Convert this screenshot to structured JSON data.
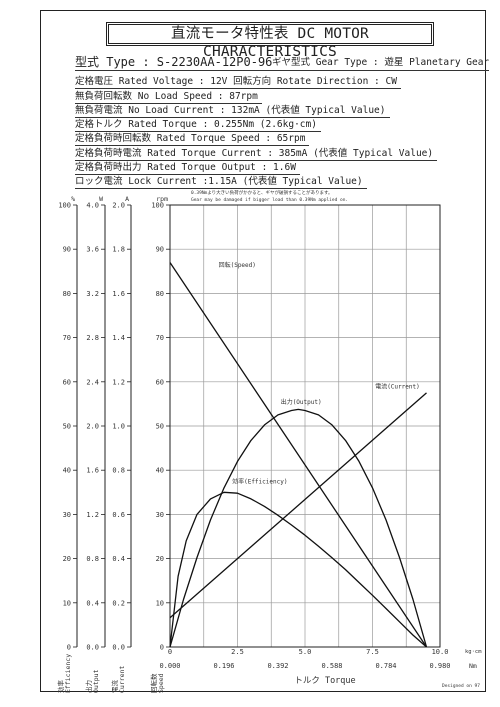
{
  "title": "直流モータ特性表 DC MOTOR CHARACTERISTICS",
  "model_line": "型式 Type : S-2230AA-12P0-96",
  "gear_line": "ギヤ型式 Gear Type : 遊星  Planetary Gear",
  "specs": [
    "定格電圧 Rated Voltage : 12V  回転方向 Rotate Direction : CW",
    "無負荷回転数 No Load Speed : 87rpm",
    "無負荷電流 No Load Current : 132mA (代表値 Typical Value)",
    "定格トルク Rated Torque : 0.255Nm (2.6kg·cm)",
    "定格負荷時回転数 Rated Torque Speed : 65rpm",
    "定格負荷時電流 Rated Torque Current : 385mA (代表値 Typical Value)",
    "定格負荷時出力 Rated Torque Output : 1.6W",
    "ロック電流 Lock Current :1.15A (代表値 Typical Value)"
  ],
  "warning_jp": "0.39Nmより大きい負荷がかかると、ギヤが破損することがあります。",
  "warning_en": "Gear may be damaged if bigger load than 0.39Nm applied on.",
  "designed_by": "Designed on 97",
  "chart_data": {
    "type": "line",
    "xlabel": "トルク Torque",
    "x_unit_kg": "kg·cm",
    "x_unit_nm": "Nm",
    "xlim": [
      0,
      10
    ],
    "x_ticks_kg": [
      "0",
      "2.5",
      "5.0",
      "7.5",
      "10.0"
    ],
    "x_ticks_nm": [
      "0.000",
      "0.196",
      "0.392",
      "0.588",
      "0.784",
      "0.980"
    ],
    "grid": true,
    "axes": [
      {
        "key": "efficiency",
        "unit": "%",
        "label": "効率 Efficiency",
        "max": 100,
        "ticks": [
          "0",
          "10",
          "20",
          "30",
          "40",
          "50",
          "60",
          "70",
          "80",
          "90",
          "100"
        ]
      },
      {
        "key": "output",
        "unit": "W",
        "label": "出力 Output",
        "max": 4.0,
        "ticks": [
          "0.0",
          "0.4",
          "0.8",
          "1.2",
          "1.6",
          "2.0",
          "2.4",
          "2.8",
          "3.2",
          "3.6",
          "4.0"
        ]
      },
      {
        "key": "current",
        "unit": "A",
        "label": "電流 Current",
        "max": 2.0,
        "ticks": [
          "0.0",
          "0.2",
          "0.4",
          "0.6",
          "0.8",
          "1.0",
          "1.2",
          "1.4",
          "1.6",
          "1.8",
          "2.0"
        ]
      },
      {
        "key": "speed",
        "unit": "rpm",
        "label": "回転数 Speed",
        "max": 100,
        "ticks": [
          "0",
          "10",
          "20",
          "30",
          "40",
          "50",
          "60",
          "70",
          "80",
          "90",
          "100"
        ]
      }
    ],
    "series": [
      {
        "name": "回転(Speed)",
        "axis": "speed",
        "x": [
          0,
          9.5
        ],
        "y": [
          87,
          0
        ],
        "label_at": [
          1.8,
          86
        ]
      },
      {
        "name": "電流(Current)",
        "axis": "current",
        "x": [
          0,
          9.5
        ],
        "y": [
          0.132,
          1.15
        ],
        "label_at": [
          7.6,
          58.5
        ]
      },
      {
        "name": "出力(Output)",
        "axis": "output",
        "x": [
          0,
          0.5,
          1,
          1.5,
          2,
          2.5,
          3,
          3.5,
          4,
          4.5,
          4.75,
          5,
          5.5,
          6,
          6.5,
          7,
          7.5,
          8,
          8.5,
          9,
          9.5
        ],
        "y": [
          0,
          0.43,
          0.81,
          1.15,
          1.44,
          1.68,
          1.87,
          2.01,
          2.1,
          2.14,
          2.15,
          2.14,
          2.1,
          2.01,
          1.87,
          1.68,
          1.44,
          1.15,
          0.81,
          0.43,
          0
        ],
        "label_at": [
          4.1,
          55
        ]
      },
      {
        "name": "効率(Efficiency)",
        "axis": "efficiency",
        "x": [
          0,
          0.3,
          0.6,
          1,
          1.5,
          2,
          2.5,
          3,
          3.5,
          4,
          4.5,
          5,
          5.5,
          6,
          6.5,
          7,
          7.5,
          8,
          8.5,
          9,
          9.5
        ],
        "y": [
          0,
          16,
          24,
          30,
          33.5,
          35,
          34.8,
          33.5,
          31.8,
          29.8,
          27.6,
          25.3,
          22.8,
          20.2,
          17.5,
          14.6,
          11.7,
          8.7,
          5.7,
          2.7,
          0
        ],
        "label_at": [
          2.3,
          37
        ]
      }
    ]
  }
}
